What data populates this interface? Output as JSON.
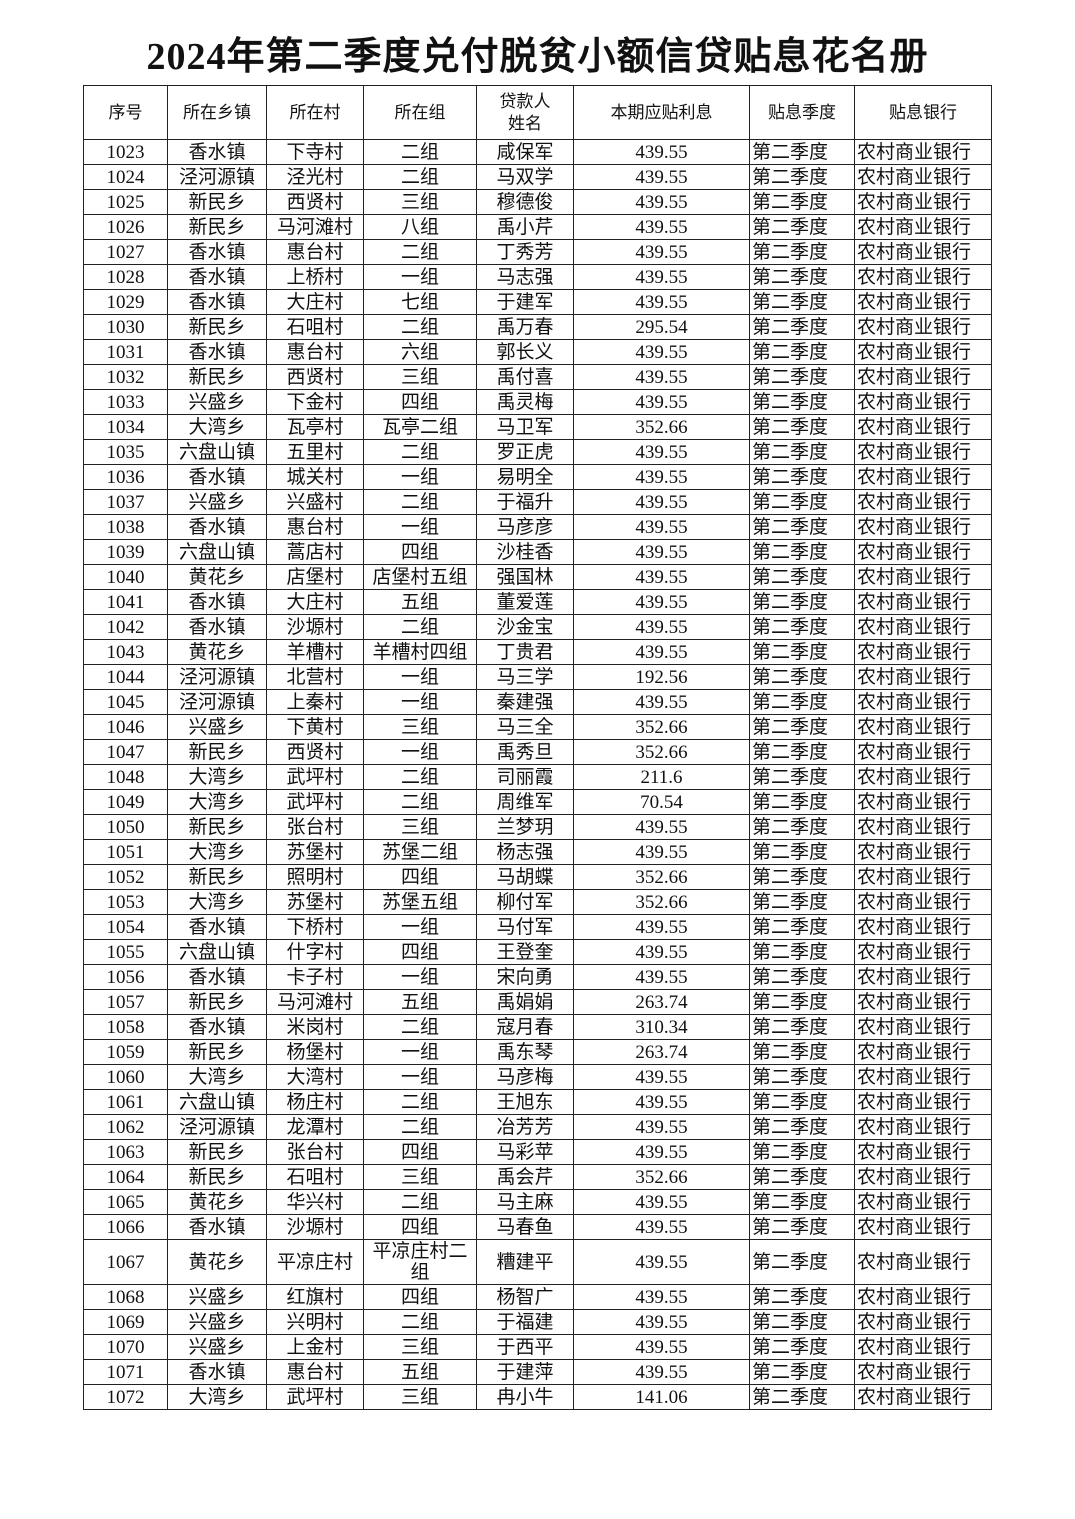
{
  "title": "2024年第二季度兑付脱贫小额信贷贴息花名册",
  "table": {
    "headers": [
      "序号",
      "所在乡镇",
      "所在村",
      "所在组",
      "贷款人姓名",
      "本期应贴利息",
      "贴息季度",
      "贴息银行"
    ],
    "rows": [
      [
        "1023",
        "香水镇",
        "下寺村",
        "二组",
        "咸保军",
        "439.55",
        "第二季度",
        "农村商业银行"
      ],
      [
        "1024",
        "泾河源镇",
        "泾光村",
        "二组",
        "马双学",
        "439.55",
        "第二季度",
        "农村商业银行"
      ],
      [
        "1025",
        "新民乡",
        "西贤村",
        "三组",
        "穆德俊",
        "439.55",
        "第二季度",
        "农村商业银行"
      ],
      [
        "1026",
        "新民乡",
        "马河滩村",
        "八组",
        "禹小芹",
        "439.55",
        "第二季度",
        "农村商业银行"
      ],
      [
        "1027",
        "香水镇",
        "惠台村",
        "二组",
        "丁秀芳",
        "439.55",
        "第二季度",
        "农村商业银行"
      ],
      [
        "1028",
        "香水镇",
        "上桥村",
        "一组",
        "马志强",
        "439.55",
        "第二季度",
        "农村商业银行"
      ],
      [
        "1029",
        "香水镇",
        "大庄村",
        "七组",
        "于建军",
        "439.55",
        "第二季度",
        "农村商业银行"
      ],
      [
        "1030",
        "新民乡",
        "石咀村",
        "二组",
        "禹万春",
        "295.54",
        "第二季度",
        "农村商业银行"
      ],
      [
        "1031",
        "香水镇",
        "惠台村",
        "六组",
        "郭长义",
        "439.55",
        "第二季度",
        "农村商业银行"
      ],
      [
        "1032",
        "新民乡",
        "西贤村",
        "三组",
        "禹付喜",
        "439.55",
        "第二季度",
        "农村商业银行"
      ],
      [
        "1033",
        "兴盛乡",
        "下金村",
        "四组",
        "禹灵梅",
        "439.55",
        "第二季度",
        "农村商业银行"
      ],
      [
        "1034",
        "大湾乡",
        "瓦亭村",
        "瓦亭二组",
        "马卫军",
        "352.66",
        "第二季度",
        "农村商业银行"
      ],
      [
        "1035",
        "六盘山镇",
        "五里村",
        "二组",
        "罗正虎",
        "439.55",
        "第二季度",
        "农村商业银行"
      ],
      [
        "1036",
        "香水镇",
        "城关村",
        "一组",
        "易明全",
        "439.55",
        "第二季度",
        "农村商业银行"
      ],
      [
        "1037",
        "兴盛乡",
        "兴盛村",
        "二组",
        "于福升",
        "439.55",
        "第二季度",
        "农村商业银行"
      ],
      [
        "1038",
        "香水镇",
        "惠台村",
        "一组",
        "马彦彦",
        "439.55",
        "第二季度",
        "农村商业银行"
      ],
      [
        "1039",
        "六盘山镇",
        "蒿店村",
        "四组",
        "沙桂香",
        "439.55",
        "第二季度",
        "农村商业银行"
      ],
      [
        "1040",
        "黄花乡",
        "店堡村",
        "店堡村五组",
        "强国林",
        "439.55",
        "第二季度",
        "农村商业银行"
      ],
      [
        "1041",
        "香水镇",
        "大庄村",
        "五组",
        "董爱莲",
        "439.55",
        "第二季度",
        "农村商业银行"
      ],
      [
        "1042",
        "香水镇",
        "沙塬村",
        "二组",
        "沙金宝",
        "439.55",
        "第二季度",
        "农村商业银行"
      ],
      [
        "1043",
        "黄花乡",
        "羊槽村",
        "羊槽村四组",
        "丁贵君",
        "439.55",
        "第二季度",
        "农村商业银行"
      ],
      [
        "1044",
        "泾河源镇",
        "北营村",
        "一组",
        "马三学",
        "192.56",
        "第二季度",
        "农村商业银行"
      ],
      [
        "1045",
        "泾河源镇",
        "上秦村",
        "一组",
        "秦建强",
        "439.55",
        "第二季度",
        "农村商业银行"
      ],
      [
        "1046",
        "兴盛乡",
        "下黄村",
        "三组",
        "马三全",
        "352.66",
        "第二季度",
        "农村商业银行"
      ],
      [
        "1047",
        "新民乡",
        "西贤村",
        "一组",
        "禹秀旦",
        "352.66",
        "第二季度",
        "农村商业银行"
      ],
      [
        "1048",
        "大湾乡",
        "武坪村",
        "二组",
        "司丽霞",
        "211.6",
        "第二季度",
        "农村商业银行"
      ],
      [
        "1049",
        "大湾乡",
        "武坪村",
        "二组",
        "周维军",
        "70.54",
        "第二季度",
        "农村商业银行"
      ],
      [
        "1050",
        "新民乡",
        "张台村",
        "三组",
        "兰梦玥",
        "439.55",
        "第二季度",
        "农村商业银行"
      ],
      [
        "1051",
        "大湾乡",
        "苏堡村",
        "苏堡二组",
        "杨志强",
        "439.55",
        "第二季度",
        "农村商业银行"
      ],
      [
        "1052",
        "新民乡",
        "照明村",
        "四组",
        "马胡蝶",
        "352.66",
        "第二季度",
        "农村商业银行"
      ],
      [
        "1053",
        "大湾乡",
        "苏堡村",
        "苏堡五组",
        "柳付军",
        "352.66",
        "第二季度",
        "农村商业银行"
      ],
      [
        "1054",
        "香水镇",
        "下桥村",
        "一组",
        "马付军",
        "439.55",
        "第二季度",
        "农村商业银行"
      ],
      [
        "1055",
        "六盘山镇",
        "什字村",
        "四组",
        "王登奎",
        "439.55",
        "第二季度",
        "农村商业银行"
      ],
      [
        "1056",
        "香水镇",
        "卡子村",
        "一组",
        "宋向勇",
        "439.55",
        "第二季度",
        "农村商业银行"
      ],
      [
        "1057",
        "新民乡",
        "马河滩村",
        "五组",
        "禹娟娟",
        "263.74",
        "第二季度",
        "农村商业银行"
      ],
      [
        "1058",
        "香水镇",
        "米岗村",
        "二组",
        "寇月春",
        "310.34",
        "第二季度",
        "农村商业银行"
      ],
      [
        "1059",
        "新民乡",
        "杨堡村",
        "一组",
        "禹东琴",
        "263.74",
        "第二季度",
        "农村商业银行"
      ],
      [
        "1060",
        "大湾乡",
        "大湾村",
        "一组",
        "马彦梅",
        "439.55",
        "第二季度",
        "农村商业银行"
      ],
      [
        "1061",
        "六盘山镇",
        "杨庄村",
        "二组",
        "王旭东",
        "439.55",
        "第二季度",
        "农村商业银行"
      ],
      [
        "1062",
        "泾河源镇",
        "龙潭村",
        "二组",
        "冶芳芳",
        "439.55",
        "第二季度",
        "农村商业银行"
      ],
      [
        "1063",
        "新民乡",
        "张台村",
        "四组",
        "马彩苹",
        "439.55",
        "第二季度",
        "农村商业银行"
      ],
      [
        "1064",
        "新民乡",
        "石咀村",
        "三组",
        "禹会芹",
        "352.66",
        "第二季度",
        "农村商业银行"
      ],
      [
        "1065",
        "黄花乡",
        "华兴村",
        "二组",
        "马主麻",
        "439.55",
        "第二季度",
        "农村商业银行"
      ],
      [
        "1066",
        "香水镇",
        "沙塬村",
        "四组",
        "马春鱼",
        "439.55",
        "第二季度",
        "农村商业银行"
      ],
      [
        "1067",
        "黄花乡",
        "平凉庄村",
        "平凉庄村二组",
        "糟建平",
        "439.55",
        "第二季度",
        "农村商业银行"
      ],
      [
        "1068",
        "兴盛乡",
        "红旗村",
        "四组",
        "杨智广",
        "439.55",
        "第二季度",
        "农村商业银行"
      ],
      [
        "1069",
        "兴盛乡",
        "兴明村",
        "二组",
        "于福建",
        "439.55",
        "第二季度",
        "农村商业银行"
      ],
      [
        "1070",
        "兴盛乡",
        "上金村",
        "三组",
        "于西平",
        "439.55",
        "第二季度",
        "农村商业银行"
      ],
      [
        "1071",
        "香水镇",
        "惠台村",
        "五组",
        "于建萍",
        "439.55",
        "第二季度",
        "农村商业银行"
      ],
      [
        "1072",
        "大湾乡",
        "武坪村",
        "三组",
        "冉小牛",
        "141.06",
        "第二季度",
        "农村商业银行"
      ]
    ]
  }
}
